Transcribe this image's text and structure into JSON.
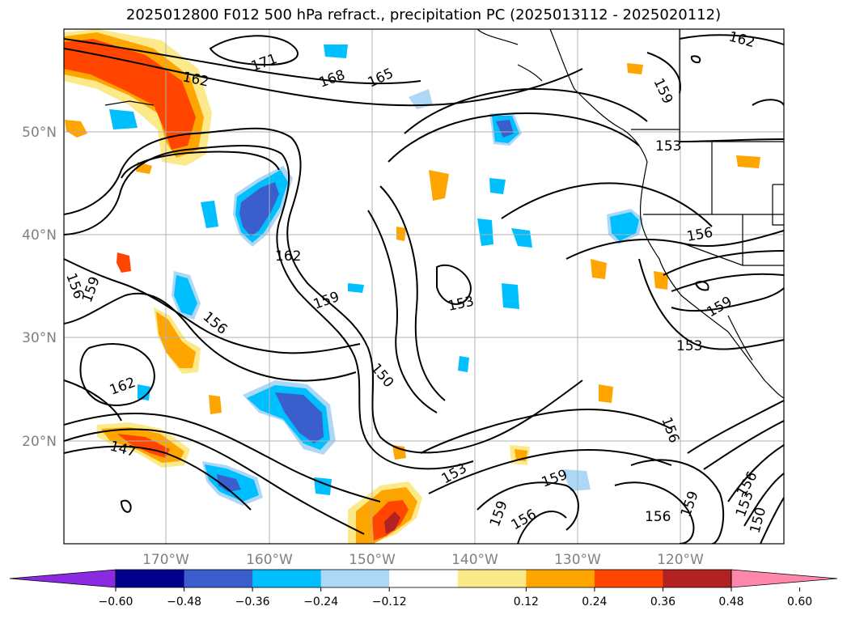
{
  "title": "2025012800 F012 500 hPa refract., precipitation PC (2025013112 - 2025020112)",
  "map": {
    "lon_ticks": [
      "170°W",
      "160°W",
      "150°W",
      "140°W",
      "130°W",
      "120°W"
    ],
    "lat_ticks": [
      "50°N",
      "40°N",
      "30°N",
      "20°N"
    ],
    "contour_labels": [
      "147",
      "150",
      "153",
      "156",
      "159",
      "162",
      "165",
      "168",
      "171"
    ],
    "grid": true,
    "coastline_color": "#000000"
  },
  "colorbar": {
    "ticks": [
      "−0.60",
      "−0.48",
      "−0.36",
      "−0.24",
      "−0.12",
      "0.12",
      "0.24",
      "0.36",
      "0.48",
      "0.60"
    ],
    "colors": [
      "#8a2be2",
      "#00008b",
      "#3a5fcd",
      "#00bfff",
      "#add8f5",
      "#ffffff",
      "#fce98a",
      "#ffa500",
      "#ff4500",
      "#b22222",
      "#ff88aa"
    ],
    "extend": "both"
  }
}
